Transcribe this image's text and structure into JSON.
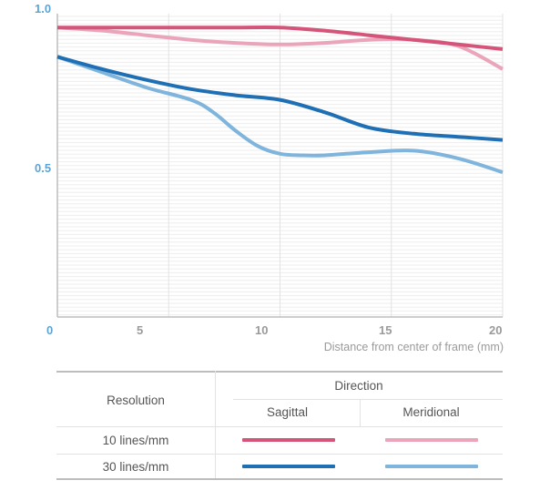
{
  "chart_data": {
    "type": "line",
    "title": "",
    "xlabel": "Distance from center of frame (mm)",
    "ylabel": "",
    "xlim": [
      0,
      20
    ],
    "ylim": [
      0,
      1.0
    ],
    "x_ticks": [
      "0",
      "5",
      "10",
      "15",
      "20"
    ],
    "y_ticks": [
      "1.0",
      "0.5"
    ],
    "grid": true,
    "series": [
      {
        "name": "10 lines/mm Sagittal",
        "color": "#d5547a",
        "x": [
          0,
          2,
          4,
          6,
          8,
          10,
          12,
          14,
          16,
          18,
          20
        ],
        "y": [
          0.955,
          0.955,
          0.955,
          0.955,
          0.955,
          0.955,
          0.945,
          0.93,
          0.915,
          0.9,
          0.885
        ]
      },
      {
        "name": "10 lines/mm Meridional",
        "color": "#eba5bb",
        "x": [
          0,
          2,
          4,
          6,
          8,
          10,
          12,
          14,
          16,
          18,
          20
        ],
        "y": [
          0.955,
          0.945,
          0.93,
          0.915,
          0.905,
          0.9,
          0.905,
          0.915,
          0.915,
          0.895,
          0.82
        ]
      },
      {
        "name": "30 lines/mm Sagittal",
        "color": "#1f6fb5",
        "x": [
          0,
          2,
          4,
          6,
          8,
          10,
          12,
          14,
          16,
          18,
          20
        ],
        "y": [
          0.86,
          0.82,
          0.785,
          0.755,
          0.735,
          0.72,
          0.68,
          0.63,
          0.61,
          0.6,
          0.59
        ]
      },
      {
        "name": "30 lines/mm Meridional",
        "color": "#7fb4dc",
        "x": [
          0,
          2,
          4,
          6,
          7,
          8,
          9,
          10,
          11,
          12,
          14,
          16,
          18,
          20
        ],
        "y": [
          0.86,
          0.81,
          0.76,
          0.72,
          0.68,
          0.62,
          0.57,
          0.545,
          0.54,
          0.54,
          0.55,
          0.555,
          0.53,
          0.485
        ]
      }
    ]
  },
  "legend": {
    "row_header": "Resolution",
    "direction_header": "Direction",
    "columns": [
      "Sagittal",
      "Meridional"
    ],
    "rows": [
      {
        "label": "10 lines/mm",
        "colors": [
          "#d5547a",
          "#eba5bb"
        ]
      },
      {
        "label": "30 lines/mm",
        "colors": [
          "#1f6fb5",
          "#7fb4dc"
        ]
      }
    ]
  }
}
